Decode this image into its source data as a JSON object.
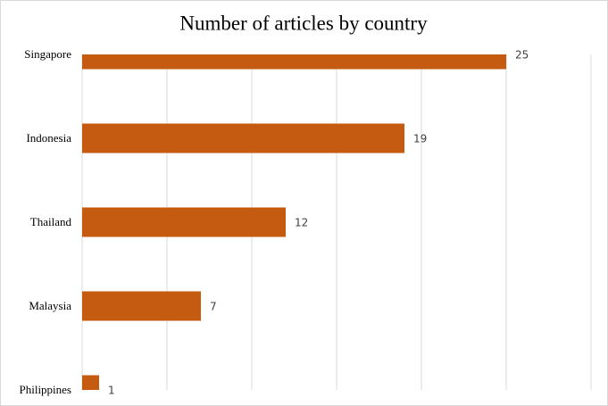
{
  "chart_data": {
    "type": "bar",
    "orientation": "horizontal",
    "title": "Number of articles by country",
    "categories": [
      "Singapore",
      "Indonesia",
      "Thailand",
      "Malaysia",
      "Philippines"
    ],
    "values": [
      25,
      19,
      12,
      7,
      1
    ],
    "color": "#c55a11",
    "xlim": [
      0,
      30
    ],
    "xticks": [
      0,
      5,
      10,
      15,
      20,
      25,
      30
    ],
    "grid": true
  }
}
